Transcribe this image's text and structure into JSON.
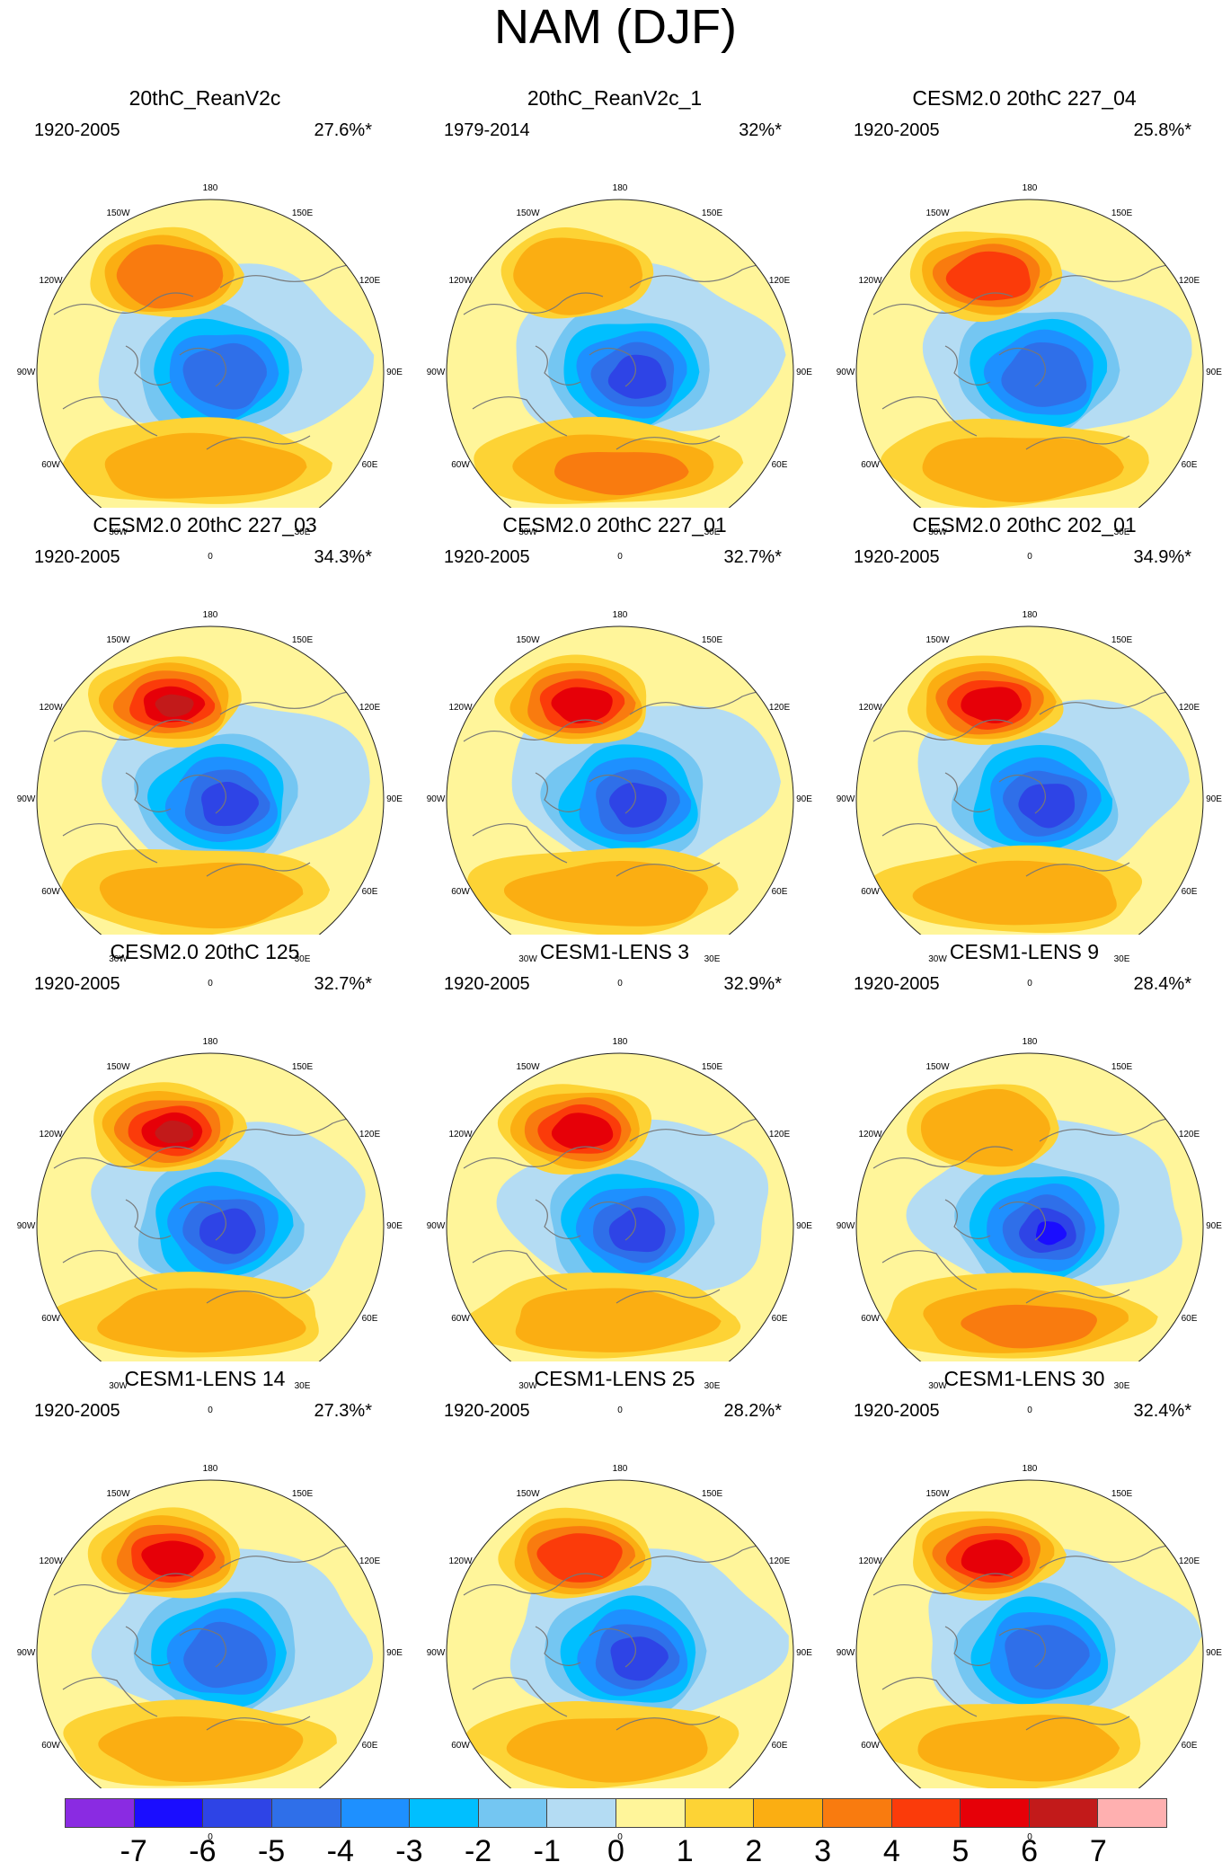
{
  "title": "NAM (DJF)",
  "colors": {
    "coast": "#777777",
    "border": "#222222",
    "ocean_bg": "#FFF5A0"
  },
  "colorbar": {
    "labels": [
      "-7",
      "-6",
      "-5",
      "-4",
      "-3",
      "-2",
      "-1",
      "0",
      "1",
      "2",
      "3",
      "4",
      "5",
      "6",
      "7"
    ],
    "colors": [
      "#8A2BE2",
      "#1A0DFF",
      "#2E44E6",
      "#2F6FE9",
      "#1E90FF",
      "#00BFFF",
      "#74C6F2",
      "#B4DCF3",
      "#FFF59A",
      "#FDD335",
      "#FBAE12",
      "#F97B0F",
      "#FB3B0A",
      "#E60008",
      "#C21A1A",
      "#FFB0B0"
    ]
  },
  "longitude_labels": {
    "top": "180",
    "tl1": "150W",
    "tl2": "120W",
    "left": "90W",
    "bl2": "60W",
    "bl1": "30W",
    "bottom": "0",
    "br1": "30E",
    "br2": "60E",
    "right": "90E",
    "tr2": "120E",
    "tr1": "150E"
  },
  "panels": [
    {
      "title": "20thC_ReanV2c",
      "period": "1920-2005",
      "percent": "27.6%*",
      "pac": 3,
      "pol": -5,
      "atl": 2
    },
    {
      "title": "20thC_ReanV2c_1",
      "period": "1979-2014",
      "percent": "32%*",
      "pac": 2,
      "pol": -6,
      "atl": 3
    },
    {
      "title": "CESM2.0 20thC 227_04",
      "period": "1920-2005",
      "percent": "25.8%*",
      "pac": 4,
      "pol": -5,
      "atl": 2
    },
    {
      "title": "CESM2.0 20thC 227_03",
      "period": "1920-2005",
      "percent": "34.3%*",
      "pac": 6,
      "pol": -6,
      "atl": 2
    },
    {
      "title": "CESM2.0 20thC 227_01",
      "period": "1920-2005",
      "percent": "32.7%*",
      "pac": 5,
      "pol": -6,
      "atl": 2
    },
    {
      "title": "CESM2.0 20thC 202_01",
      "period": "1920-2005",
      "percent": "34.9%*",
      "pac": 5,
      "pol": -6,
      "atl": 2
    },
    {
      "title": "CESM2.0 20thC 125",
      "period": "1920-2005",
      "percent": "32.7%*",
      "pac": 6,
      "pol": -6,
      "atl": 2
    },
    {
      "title": "CESM1-LENS 3",
      "period": "1920-2005",
      "percent": "32.9%*",
      "pac": 5,
      "pol": -6,
      "atl": 2
    },
    {
      "title": "CESM1-LENS 9",
      "period": "1920-2005",
      "percent": "28.4%*",
      "pac": 2,
      "pol": -7,
      "atl": 3
    },
    {
      "title": "CESM1-LENS 14",
      "period": "1920-2005",
      "percent": "27.3%*",
      "pac": 5,
      "pol": -5,
      "atl": 2
    },
    {
      "title": "CESM1-LENS 25",
      "period": "1920-2005",
      "percent": "28.2%*",
      "pac": 4,
      "pol": -6,
      "atl": 2
    },
    {
      "title": "CESM1-LENS 30",
      "period": "1920-2005",
      "percent": "32.4%*",
      "pac": 5,
      "pol": -5,
      "atl": 2
    }
  ]
}
